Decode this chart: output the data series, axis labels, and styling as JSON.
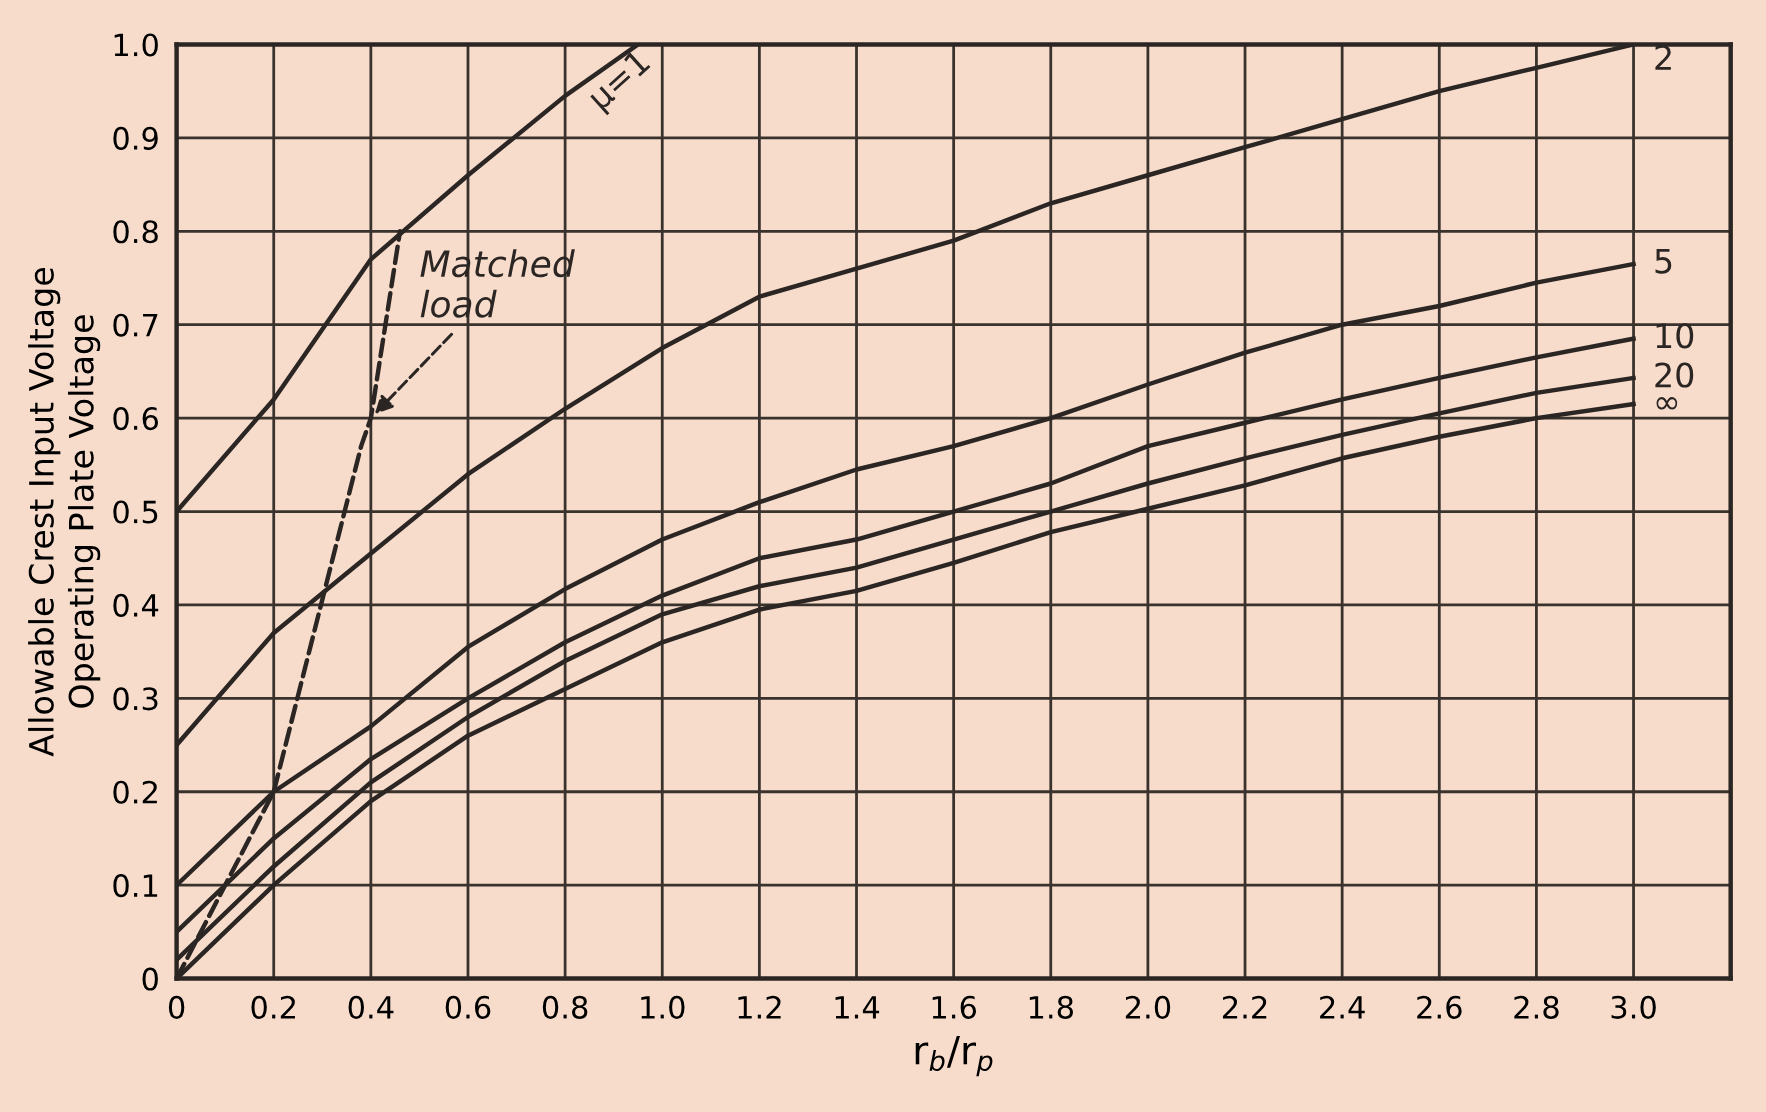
{
  "chart_data": {
    "type": "line",
    "xlabel": "r$_{b}$/r$_{p}$",
    "ylabel": "Allowable Crest Input Voltage\nOperating Plate Voltage",
    "xlim": [
      0,
      3.2
    ],
    "ylim": [
      0,
      1.0
    ],
    "xticks": [
      0,
      0.2,
      0.4,
      0.6,
      0.8,
      {
        "value": 1,
        "label": "1.0"
      },
      1.2,
      1.4,
      1.6,
      1.8,
      {
        "value": 2,
        "label": "2.0"
      },
      2.2,
      2.4,
      2.6,
      2.8,
      {
        "value": 3,
        "label": "3.0"
      }
    ],
    "yticks": [
      0,
      0.1,
      0.2,
      0.3,
      0.4,
      0.5,
      0.6,
      0.7,
      0.8,
      0.9,
      {
        "value": 1,
        "label": "1.0"
      }
    ],
    "grid": true,
    "legend": false,
    "marker": "none",
    "series": [
      {
        "name": "μ=1",
        "color": "#2b2623",
        "x": [
          0,
          0.2,
          0.4,
          0.6,
          0.8,
          0.95
        ],
        "values": [
          0.5,
          0.62,
          0.77,
          0.86,
          0.945,
          1.0
        ]
      },
      {
        "name": "2",
        "color": "#2b2623",
        "x": [
          0,
          0.2,
          0.4,
          0.6,
          0.8,
          1.0,
          1.2,
          1.4,
          1.6,
          1.8,
          2.0,
          2.2,
          2.4,
          2.6,
          2.8,
          3.0
        ],
        "values": [
          0.25,
          0.37,
          0.455,
          0.54,
          0.61,
          0.675,
          0.73,
          0.76,
          0.79,
          0.83,
          0.86,
          0.89,
          0.92,
          0.95,
          0.975,
          1.0
        ]
      },
      {
        "name": "5",
        "color": "#2b2623",
        "x": [
          0,
          0.2,
          0.4,
          0.6,
          0.8,
          1.0,
          1.2,
          1.4,
          1.6,
          1.8,
          2.0,
          2.2,
          2.4,
          2.6,
          2.8,
          3.0
        ],
        "values": [
          0.1,
          0.2,
          0.27,
          0.355,
          0.417,
          0.47,
          0.51,
          0.545,
          0.57,
          0.6,
          0.636,
          0.67,
          0.7,
          0.72,
          0.745,
          0.765
        ]
      },
      {
        "name": "10",
        "color": "#2b2623",
        "x": [
          0,
          0.2,
          0.4,
          0.6,
          0.8,
          1.0,
          1.2,
          1.4,
          1.6,
          1.8,
          2.0,
          2.2,
          2.4,
          2.6,
          2.8,
          3.0
        ],
        "values": [
          0.05,
          0.15,
          0.235,
          0.3,
          0.36,
          0.41,
          0.45,
          0.47,
          0.5,
          0.53,
          0.57,
          0.595,
          0.62,
          0.643,
          0.665,
          0.685
        ]
      },
      {
        "name": "20",
        "color": "#2b2623",
        "x": [
          0,
          0.2,
          0.4,
          0.6,
          0.8,
          1.0,
          1.2,
          1.4,
          1.6,
          1.8,
          2.0,
          2.2,
          2.4,
          2.6,
          2.8,
          3.0
        ],
        "values": [
          0.02,
          0.12,
          0.21,
          0.28,
          0.34,
          0.39,
          0.42,
          0.44,
          0.47,
          0.5,
          0.53,
          0.557,
          0.582,
          0.605,
          0.627,
          0.643
        ]
      },
      {
        "name": "∞",
        "color": "#2b2623",
        "x": [
          0,
          0.2,
          0.4,
          0.6,
          0.8,
          1.0,
          1.2,
          1.4,
          1.6,
          1.8,
          2.0,
          2.2,
          2.4,
          2.6,
          2.8,
          3.0
        ],
        "values": [
          0,
          0.1,
          0.19,
          0.26,
          0.31,
          0.36,
          0.395,
          0.415,
          0.445,
          0.478,
          0.503,
          0.528,
          0.557,
          0.58,
          0.6,
          0.615
        ]
      },
      {
        "color": "#2b2623",
        "line_style": "dashed",
        "x": [
          0,
          0.2,
          0.38,
          0.4,
          0.46
        ],
        "values": [
          0,
          0.2,
          0.57,
          0.6,
          0.8
        ]
      }
    ],
    "annotations": [
      {
        "text": "Matched\nload",
        "x": 0.4,
        "y": 0.6
      }
    ]
  }
}
